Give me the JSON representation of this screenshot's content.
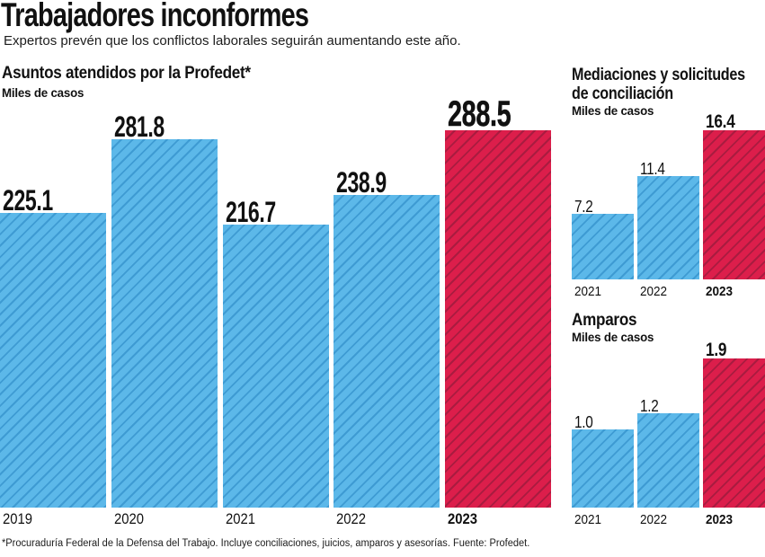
{
  "header": {
    "title": "Trabajadores inconformes",
    "subtitle": "Expertos prevén que los conflictos laborales seguirán aumentando este año."
  },
  "colors": {
    "blue": "#5cb8e9",
    "blue_hatch": "#3e9bd3",
    "red": "#dc1e4b",
    "red_hatch": "#a91c40",
    "text": "#111111"
  },
  "chart_data": [
    {
      "type": "bar",
      "title": "Asuntos atendidos por la Profedet*",
      "unit_label": "Miles de casos",
      "categories": [
        "2019",
        "2020",
        "2021",
        "2022",
        "2023"
      ],
      "values": [
        225.1,
        281.8,
        216.7,
        238.9,
        288.5
      ],
      "value_labels": [
        "225.1",
        "281.8",
        "216.7",
        "238.9",
        "288.5"
      ],
      "highlight_category": "2023",
      "ylim": [
        0,
        288.5
      ],
      "grid": false,
      "legend": "none"
    },
    {
      "type": "bar",
      "title": "Mediaciones y solicitudes de conciliación",
      "unit_label": "Miles de casos",
      "categories": [
        "2021",
        "2022",
        "2023"
      ],
      "values": [
        7.2,
        11.4,
        16.4
      ],
      "value_labels": [
        "7.2",
        "11.4",
        "16.4"
      ],
      "highlight_category": "2023",
      "ylim": [
        0,
        16.4
      ],
      "grid": false,
      "legend": "none"
    },
    {
      "type": "bar",
      "title": "Amparos",
      "unit_label": "Miles de casos",
      "categories": [
        "2021",
        "2022",
        "2023"
      ],
      "values": [
        1.0,
        1.2,
        1.9
      ],
      "value_labels": [
        "1.0",
        "1.2",
        "1.9"
      ],
      "highlight_category": "2023",
      "ylim": [
        0,
        1.9
      ],
      "grid": false,
      "legend": "none"
    }
  ],
  "footer": {
    "note": "*Procuraduría Federal de la Defensa del Trabajo. Incluye conciliaciones, juicios, amparos y asesorías. Fuente: Profedet."
  }
}
